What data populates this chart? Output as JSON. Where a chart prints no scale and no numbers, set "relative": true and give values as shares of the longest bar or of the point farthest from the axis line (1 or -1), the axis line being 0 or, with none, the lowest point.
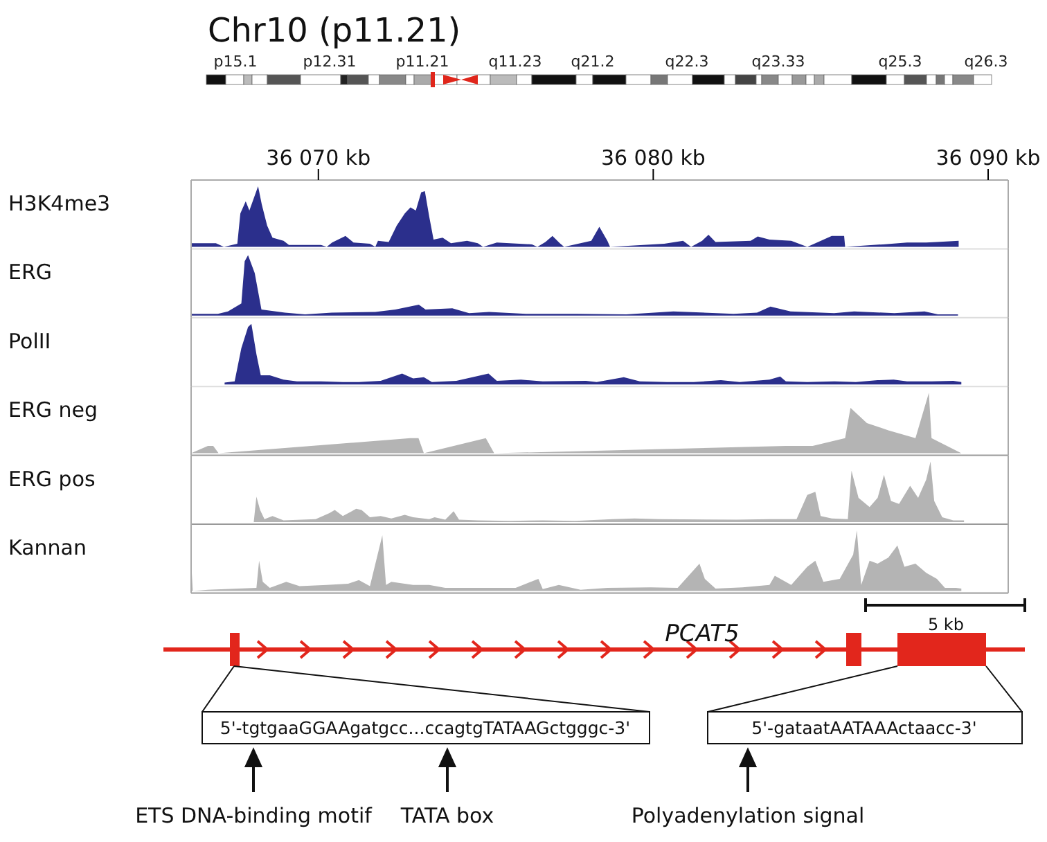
{
  "chart_data": [
    {
      "type": "other",
      "title": "Chr10 (p11.21)",
      "annotations": [
        "p15.1",
        "p12.31",
        "p11.21",
        "q11.23",
        "q21.2",
        "q22.3",
        "q23.33",
        "q25.3",
        "q26.3"
      ]
    },
    {
      "type": "area",
      "ylabel": "H3K4me3",
      "relative": true,
      "xlim": [
        36066.2,
        36090.6
      ],
      "xticks": [
        {
          "value": 36070,
          "label": "36 070 kb"
        },
        {
          "value": 36080,
          "label": "36 080 kb"
        },
        {
          "value": 36090,
          "label": "36 090 kb"
        }
      ],
      "tick_labels": "x",
      "x": [
        36066.2,
        36066.94,
        36067.18,
        36067.58,
        36067.67,
        36067.83,
        36067.94,
        36068.07,
        36068.2,
        36068.31,
        36068.47,
        36068.63,
        36068.96,
        36069.12,
        36070.08,
        36070.25,
        36070.41,
        36070.81,
        36071.05,
        36071.54,
        36071.7,
        36071.78,
        36072.1,
        36072.34,
        36072.58,
        36072.75,
        36072.91,
        36073.07,
        36073.18,
        36073.31,
        36073.44,
        36073.71,
        36073.96,
        36074.44,
        36074.76,
        36074.92,
        36075.33,
        36076.38,
        36076.54,
        36076.78,
        36076.99,
        36077.21,
        36077.34,
        36078.15,
        36078.39,
        36078.63,
        36078.71,
        36080.33,
        36080.89,
        36081.13,
        36081.46,
        36081.65,
        36081.86,
        36082.91,
        36083.12,
        36083.47,
        36084.12,
        36084.6,
        36085.33,
        36085.7,
        36085.73,
        36086.86,
        36087.58,
        36088.15,
        36088.47,
        36089.12
      ],
      "series": [
        {
          "color": "#2b2f8c",
          "values": [
            0.06,
            0.06,
            0,
            0.05,
            0.55,
            0.75,
            0.6,
            0.8,
            1.0,
            0.7,
            0.35,
            0.15,
            0.1,
            0.03,
            0.03,
            0,
            0.07,
            0.18,
            0.07,
            0.05,
            0,
            0.1,
            0.08,
            0.35,
            0.55,
            0.65,
            0.6,
            0.9,
            0.92,
            0.5,
            0.12,
            0.15,
            0.06,
            0.1,
            0.06,
            0,
            0.07,
            0.04,
            0,
            0.08,
            0.18,
            0.06,
            0,
            0.1,
            0.33,
            0.1,
            0,
            0.05,
            0.1,
            0,
            0.1,
            0.2,
            0.08,
            0.1,
            0.17,
            0.12,
            0.1,
            0,
            0.18,
            0.18,
            0,
            0.04,
            0.07,
            0.07,
            0.08,
            0.1
          ]
        }
      ]
    },
    {
      "type": "area",
      "ylabel": "ERG",
      "relative": true,
      "xlim": [
        36066.2,
        36090.6
      ],
      "tick_labels": false,
      "x": [
        36066.2,
        36067.0,
        36067.3,
        36067.7,
        36067.8,
        36067.9,
        36068.1,
        36068.2,
        36068.3,
        36069.0,
        36069.6,
        36070.4,
        36071.7,
        36072.3,
        36073.0,
        36073.2,
        36074.0,
        36074.5,
        36075.1,
        36076.2,
        36077.7,
        36079.2,
        36080.6,
        36082.4,
        36083.1,
        36083.5,
        36084.1,
        36085.4,
        36086.0,
        36087.2,
        36088.1,
        36088.5,
        36089.1
      ],
      "series": [
        {
          "color": "#2b2f8c",
          "values": [
            0.03,
            0.03,
            0.07,
            0.2,
            0.9,
            1.0,
            0.7,
            0.4,
            0.1,
            0.05,
            0.02,
            0.05,
            0.06,
            0.1,
            0.18,
            0.1,
            0.12,
            0.04,
            0.06,
            0.03,
            0.03,
            0.02,
            0.07,
            0.03,
            0.05,
            0.15,
            0.07,
            0.04,
            0.07,
            0.04,
            0.07,
            0.02,
            0.02
          ]
        }
      ]
    },
    {
      "type": "area",
      "ylabel": "PolII",
      "relative": true,
      "xlim": [
        36066.2,
        36090.6
      ],
      "tick_labels": false,
      "x": [
        36067.2,
        36067.5,
        36067.7,
        36067.9,
        36068.0,
        36068.15,
        36068.28,
        36068.55,
        36068.96,
        36069.36,
        36070.08,
        36070.73,
        36071.21,
        36071.86,
        36072.5,
        36072.83,
        36073.15,
        36073.39,
        36074.12,
        36075.08,
        36075.33,
        36076.05,
        36076.7,
        36077.99,
        36078.31,
        36079.12,
        36079.6,
        36080.41,
        36081.21,
        36082.02,
        36082.58,
        36083.47,
        36083.79,
        36083.96,
        36084.6,
        36085.41,
        36086.05,
        36086.7,
        36087.18,
        36087.58,
        36088.31,
        36088.96,
        36089.2
      ],
      "series": [
        {
          "color": "#2b2f8c",
          "values": [
            0.03,
            0.05,
            0.6,
            0.95,
            1.0,
            0.5,
            0.15,
            0.15,
            0.08,
            0.05,
            0.05,
            0.04,
            0.04,
            0.06,
            0.18,
            0.1,
            0.12,
            0.04,
            0.06,
            0.18,
            0.06,
            0.08,
            0.05,
            0.06,
            0.04,
            0.12,
            0.05,
            0.04,
            0.04,
            0.07,
            0.04,
            0.08,
            0.13,
            0.05,
            0.04,
            0.05,
            0.04,
            0.07,
            0.08,
            0.05,
            0.05,
            0.06,
            0.04
          ]
        }
      ]
    },
    {
      "type": "area",
      "ylabel": "ERG neg",
      "relative": true,
      "xlim": [
        36066.2,
        36090.6
      ],
      "tick_labels": false,
      "x": [
        36066.2,
        36066.7,
        36066.86,
        36067.02,
        36072.75,
        36072.99,
        36073.15,
        36075.0,
        36075.25,
        36083.96,
        36084.76,
        36085.73,
        36085.89,
        36086.38,
        36087.02,
        36087.83,
        36088.23,
        36088.31,
        36089.2
      ],
      "series": [
        {
          "color": "#b4b4b4",
          "values": [
            0,
            0.12,
            0.12,
            0,
            0.25,
            0.25,
            0,
            0.25,
            0,
            0.12,
            0.12,
            0.25,
            0.75,
            0.5,
            0.38,
            0.25,
            1.0,
            0.25,
            0
          ]
        }
      ]
    },
    {
      "type": "area",
      "ylabel": "ERG pos",
      "relative": true,
      "xlim": [
        36066.2,
        36090.6
      ],
      "tick_labels": false,
      "x": [
        36066.2,
        36068.07,
        36068.15,
        36068.26,
        36068.39,
        36068.63,
        36068.96,
        36069.92,
        36070.33,
        36070.49,
        36070.73,
        36071.13,
        36071.29,
        36071.54,
        36071.86,
        36072.18,
        36072.58,
        36072.83,
        36073.31,
        36073.47,
        36073.79,
        36074.04,
        36074.2,
        36074.76,
        36075.73,
        36076.7,
        36077.67,
        36078.79,
        36079.44,
        36080.17,
        36082.5,
        36083.47,
        36084.28,
        36084.6,
        36084.84,
        36085.0,
        36085.33,
        36085.81,
        36085.92,
        36086.13,
        36086.46,
        36086.7,
        36086.89,
        36087.1,
        36087.34,
        36087.67,
        36087.91,
        36088.15,
        36088.28,
        36088.39,
        36088.63,
        36088.96,
        36089.28
      ],
      "series": [
        {
          "color": "#b4b4b4",
          "values": [
            0,
            0,
            0.42,
            0.2,
            0.05,
            0.1,
            0.03,
            0.05,
            0.15,
            0.2,
            0.1,
            0.22,
            0.2,
            0.08,
            0.1,
            0.06,
            0.12,
            0.08,
            0.05,
            0.08,
            0.04,
            0.18,
            0.04,
            0.03,
            0.02,
            0.03,
            0.02,
            0.05,
            0.06,
            0.05,
            0.04,
            0.05,
            0.05,
            0.45,
            0.5,
            0.1,
            0.06,
            0.05,
            0.85,
            0.4,
            0.25,
            0.4,
            0.78,
            0.35,
            0.3,
            0.6,
            0.4,
            0.7,
            1.0,
            0.35,
            0.08,
            0.03,
            0.03
          ]
        }
      ]
    },
    {
      "type": "area",
      "ylabel": "Kannan",
      "relative": true,
      "xlim": [
        36066.2,
        36090.6
      ],
      "tick_labels": false,
      "x": [
        36066.2,
        36066.25,
        36066.7,
        36068.15,
        36068.23,
        36068.34,
        36068.55,
        36069.04,
        36069.44,
        36070.25,
        36070.89,
        36071.21,
        36071.54,
        36071.91,
        36072.02,
        36072.18,
        36072.83,
        36073.31,
        36073.79,
        36074.76,
        36075.89,
        36076.57,
        36076.7,
        36077.18,
        36077.83,
        36078.63,
        36079.92,
        36080.73,
        36081.38,
        36081.54,
        36081.86,
        36082.67,
        36083.47,
        36083.63,
        36084.12,
        36084.6,
        36084.84,
        36085.08,
        36085.57,
        36085.97,
        36086.08,
        36086.21,
        36086.46,
        36086.7,
        36087.02,
        36087.29,
        36087.5,
        36087.83,
        36088.15,
        36088.47,
        36088.71,
        36089.04,
        36089.2
      ],
      "series": [
        {
          "color": "#b4b4b4",
          "values": [
            0.5,
            0,
            0.02,
            0.05,
            0.5,
            0.15,
            0.05,
            0.15,
            0.08,
            0.1,
            0.12,
            0.18,
            0.08,
            0.92,
            0.1,
            0.15,
            0.1,
            0.1,
            0.05,
            0.05,
            0.05,
            0.2,
            0.03,
            0.1,
            0.02,
            0.05,
            0.06,
            0.05,
            0.45,
            0.2,
            0.04,
            0.06,
            0.1,
            0.25,
            0.1,
            0.4,
            0.5,
            0.15,
            0.2,
            0.6,
            1.0,
            0.1,
            0.5,
            0.45,
            0.55,
            0.75,
            0.4,
            0.45,
            0.3,
            0.2,
            0.05,
            0.05,
            0.04
          ]
        }
      ]
    },
    {
      "type": "other",
      "annotations": [
        "PCAT5",
        "5 kb",
        "5'-tgtgaaGGAAgatgcc...ccagtgTATAAGctgggc-3'",
        "5'-gataatAATAAActaacc-3'",
        "ETS DNA-binding motif",
        "TATA box",
        "Polyadenylation signal"
      ]
    }
  ]
}
